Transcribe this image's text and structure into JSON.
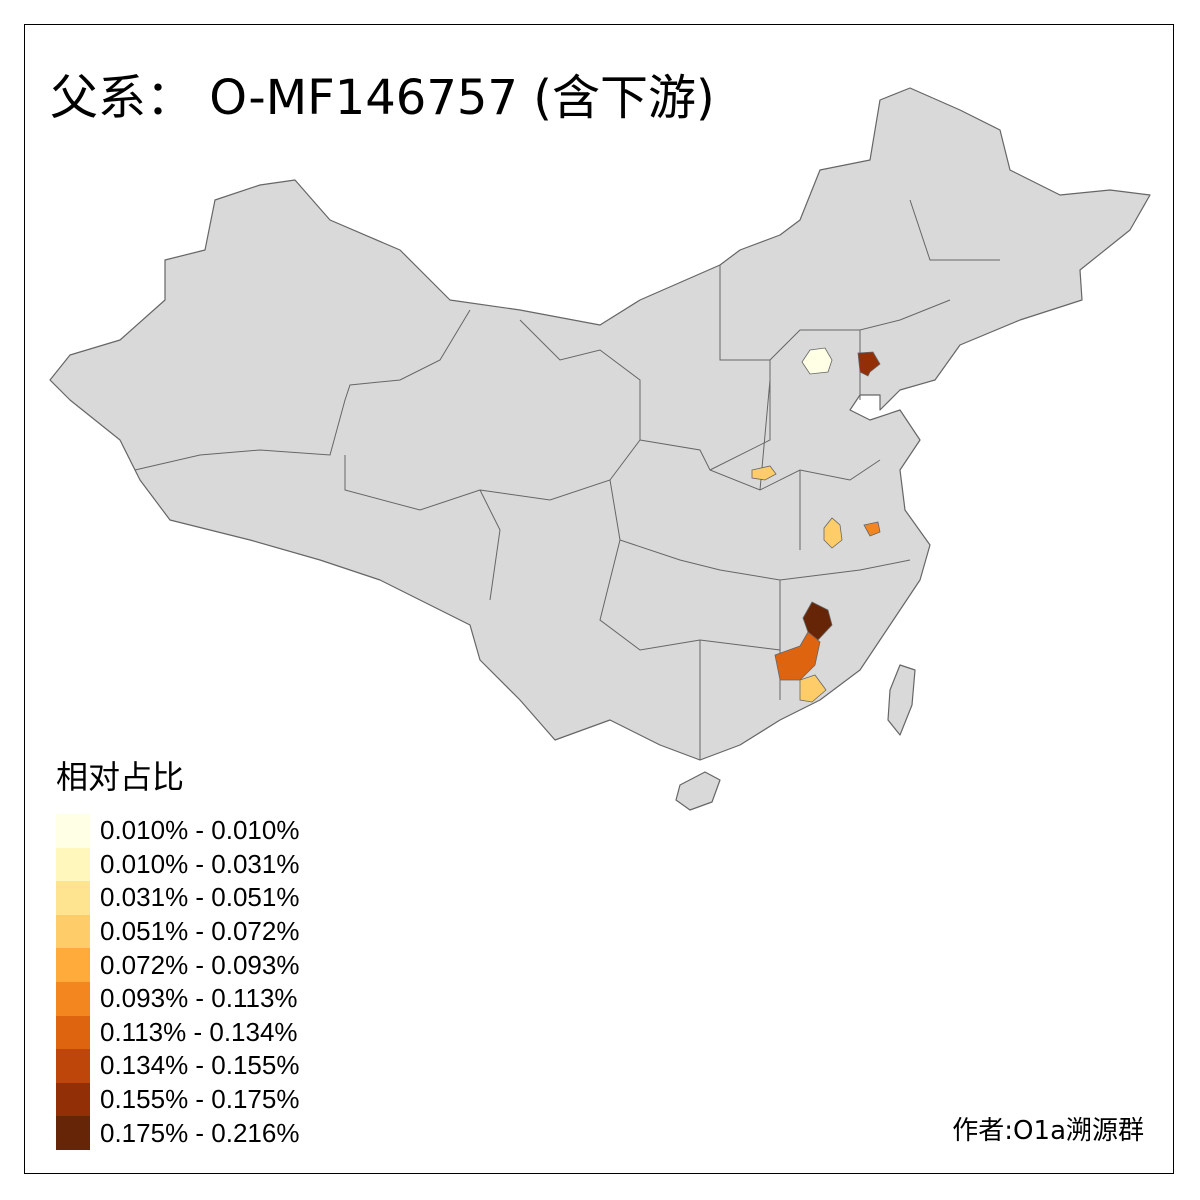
{
  "title": "父系： O-MF146757 (含下游)",
  "legend": {
    "title": "相对占比",
    "bins": [
      {
        "label": "0.010% - 0.010%",
        "color": "#FFFFE5"
      },
      {
        "label": "0.010% - 0.031%",
        "color": "#FFF7BC"
      },
      {
        "label": "0.031% - 0.051%",
        "color": "#FEE391"
      },
      {
        "label": "0.051% - 0.072%",
        "color": "#FECD6A"
      },
      {
        "label": "0.072% - 0.093%",
        "color": "#FEAB3C"
      },
      {
        "label": "0.093% - 0.113%",
        "color": "#F3861F"
      },
      {
        "label": "0.113% - 0.134%",
        "color": "#DE6410"
      },
      {
        "label": "0.134% - 0.155%",
        "color": "#BF460A"
      },
      {
        "label": "0.155% - 0.175%",
        "color": "#932F06"
      },
      {
        "label": "0.175% - 0.216%",
        "color": "#662506"
      }
    ]
  },
  "map": {
    "base_color": "#D9D9D9",
    "border_color": "#666666",
    "highlighted_regions": [
      {
        "bin": 0
      },
      {
        "bin": 8
      },
      {
        "bin": 3
      },
      {
        "bin": 3
      },
      {
        "bin": 5
      },
      {
        "bin": 9
      },
      {
        "bin": 6
      },
      {
        "bin": 3
      }
    ]
  },
  "credit": "作者:O1a溯源群"
}
